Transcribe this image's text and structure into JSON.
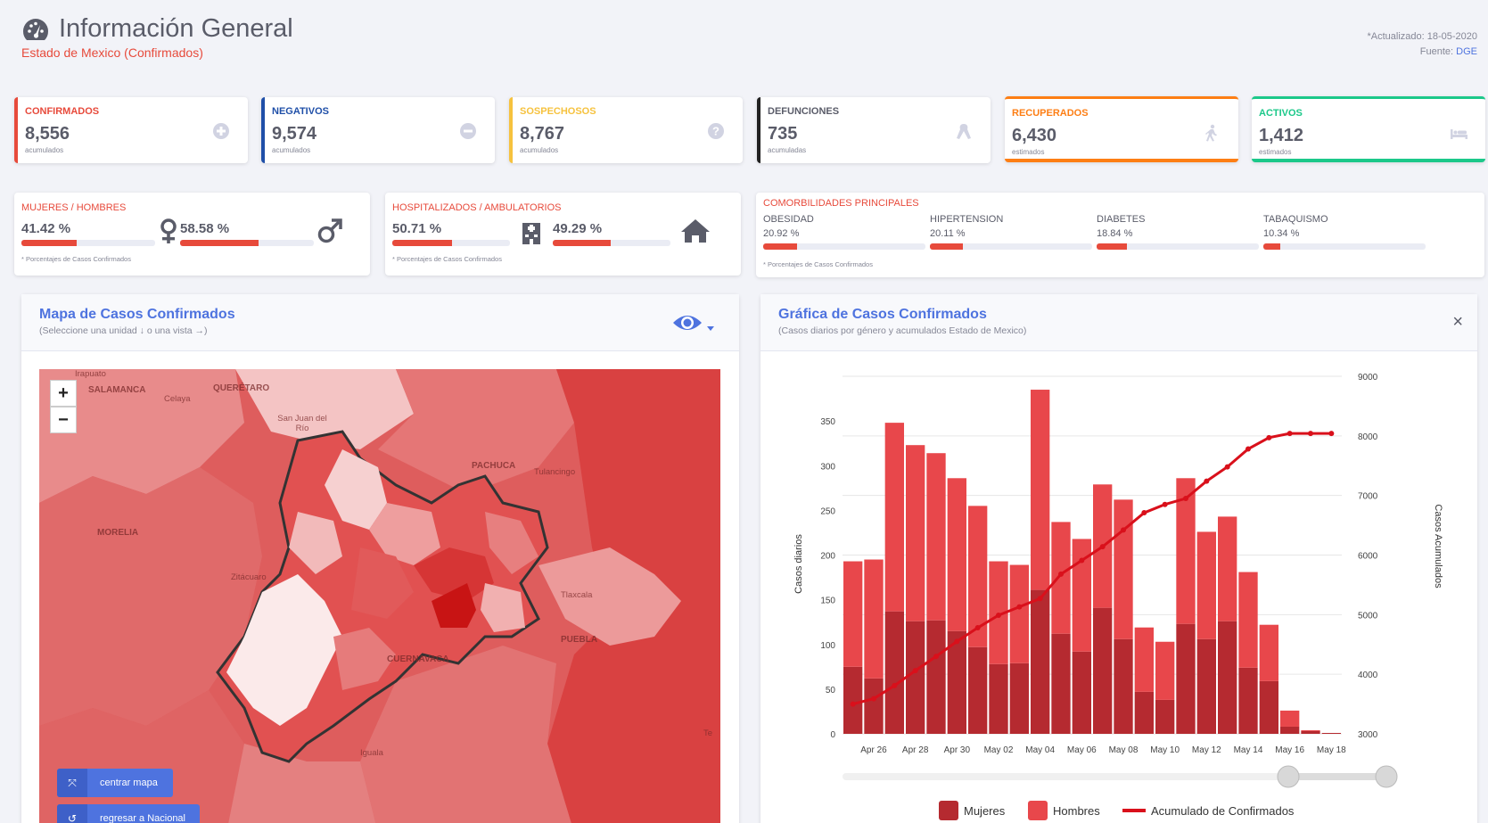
{
  "header": {
    "title": "Información General",
    "subtitle": "Estado de Mexico (Confirmados)",
    "updated": "*Actualizado: 18-05-2020",
    "source_label": "Fuente:",
    "source_link": "DGE"
  },
  "stats": [
    {
      "label": "CONFIRMADOS",
      "value": "8,556",
      "sub": "acumulados",
      "color": "#e74a3b",
      "icon": "plus-circle-icon"
    },
    {
      "label": "NEGATIVOS",
      "value": "9,574",
      "sub": "acumulados",
      "color": "#1f4fa8",
      "icon": "minus-circle-icon"
    },
    {
      "label": "SOSPECHOSOS",
      "value": "8,767",
      "sub": "acumulados",
      "color": "#f6c23e",
      "icon": "question-circle-icon"
    },
    {
      "label": "DEFUNCIONES",
      "value": "735",
      "sub": "acumuladas",
      "color": "#222222",
      "icon": "ribbon-icon"
    },
    {
      "label": "RECUPERADOS",
      "value": "6,430",
      "sub": "estimados",
      "color": "#fd7e14",
      "icon": "walking-icon"
    },
    {
      "label": "ACTIVOS",
      "value": "1,412",
      "sub": "estimados",
      "color": "#1cc88a",
      "icon": "bed-icon"
    }
  ],
  "gender": {
    "title": "MUJERES / HOMBRES",
    "women_pct": "41.42 %",
    "men_pct": "58.58 %",
    "women_frac": 0.4142,
    "men_frac": 0.5858,
    "note": "* Porcentajes de Casos Confirmados"
  },
  "hospital": {
    "title": "HOSPITALIZADOS / AMBULATORIOS",
    "hosp_pct": "50.71 %",
    "amb_pct": "49.29 %",
    "hosp_frac": 0.5071,
    "amb_frac": 0.4929,
    "note": "* Porcentajes de Casos Confirmados"
  },
  "comorbidities": {
    "title": "COMORBILIDADES PRINCIPALES",
    "items": [
      {
        "label": "OBESIDAD",
        "pct": "20.92 %",
        "frac": 0.2092
      },
      {
        "label": "HIPERTENSION",
        "pct": "20.11 %",
        "frac": 0.2011
      },
      {
        "label": "DIABETES",
        "pct": "18.84 %",
        "frac": 0.1884
      },
      {
        "label": "TABAQUISMO",
        "pct": "10.34 %",
        "frac": 0.1034
      }
    ],
    "note": "* Porcentajes de Casos Confirmados"
  },
  "map_panel": {
    "title": "Mapa de Casos Confirmados",
    "subtitle": "(Seleccione una unidad ↓ o una vista →)",
    "zoom_in": "+",
    "zoom_out": "−",
    "center_button": "centrar mapa",
    "national_button": "regresar a Nacional",
    "place_labels": [
      "Irapuato",
      "SALAMANCA",
      "Celaya",
      "QUERÉTARO",
      "San Juan del Río",
      "PACHUCA",
      "Tulancingo",
      "MORELIA",
      "Zitácuaro",
      "Tlaxcala",
      "PUEBLA",
      "CUERNAVACA",
      "Iguala",
      "Te"
    ]
  },
  "chart_panel": {
    "title": "Gráfica de Casos Confirmados",
    "subtitle": "(Casos diarios por género y acumulados Estado de Mexico)",
    "close": "×"
  },
  "chart_data": {
    "type": "bar",
    "categories": [
      "Apr 25",
      "Apr 26",
      "Apr 27",
      "Apr 28",
      "Apr 29",
      "Apr 30",
      "May 01",
      "May 02",
      "May 03",
      "May 04",
      "May 05",
      "May 06",
      "May 07",
      "May 08",
      "May 09",
      "May 10",
      "May 11",
      "May 12",
      "May 13",
      "May 14",
      "May 15",
      "May 16",
      "May 17",
      "May 18"
    ],
    "x_tick_labels": [
      "Apr 26",
      "Apr 28",
      "Apr 30",
      "May 02",
      "May 04",
      "May 06",
      "May 08",
      "May 10",
      "May 12",
      "May 14",
      "May 16",
      "May 18"
    ],
    "series": [
      {
        "name": "Mujeres",
        "type": "bar",
        "stack": "daily",
        "color": "#b52a30",
        "values": [
          75,
          62,
          137,
          126,
          127,
          115,
          97,
          78,
          79,
          161,
          112,
          92,
          141,
          106,
          47,
          38,
          123,
          106,
          126,
          74,
          59,
          8,
          3,
          1
        ]
      },
      {
        "name": "Hombres",
        "type": "bar",
        "stack": "daily",
        "color": "#e8474b",
        "values": [
          118,
          133,
          211,
          197,
          187,
          171,
          158,
          115,
          110,
          224,
          125,
          126,
          138,
          156,
          72,
          65,
          163,
          120,
          117,
          107,
          63,
          18,
          1,
          0
        ]
      },
      {
        "name": "Acumulado de Confirmados",
        "type": "line",
        "axis": "right",
        "color": "#d9101b",
        "values": [
          3500,
          3590,
          3810,
          4060,
          4300,
          4550,
          4780,
          4990,
          5130,
          5270,
          5680,
          5910,
          6140,
          6420,
          6710,
          6850,
          6950,
          7240,
          7480,
          7780,
          7970,
          8040,
          8040,
          8040
        ]
      }
    ],
    "ylabel": "Casos diarios",
    "y2label": "Casos Acumulados",
    "ylim": [
      0,
      400
    ],
    "y_ticks": [
      0,
      50,
      100,
      150,
      200,
      250,
      300,
      350
    ],
    "y2lim": [
      3000,
      9000
    ],
    "y2_ticks": [
      3000,
      4000,
      5000,
      6000,
      7000,
      8000,
      9000
    ],
    "legend": [
      "Mujeres",
      "Hombres",
      "Acumulado de Confirmados"
    ],
    "legend_position": "bottom",
    "grid": true
  }
}
